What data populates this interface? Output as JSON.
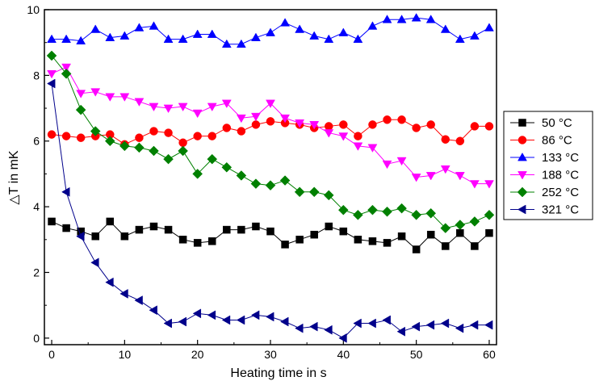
{
  "chart_data": {
    "type": "line",
    "title": "",
    "xlabel": "Heating time in s",
    "ylabel": "△T in mK",
    "xlim": [
      -1,
      61
    ],
    "ylim": [
      -0.2,
      10
    ],
    "x_ticks": [
      "0",
      "10",
      "20",
      "30",
      "40",
      "50",
      "60"
    ],
    "y_ticks": [
      "0",
      "2",
      "4",
      "6",
      "8",
      "10"
    ],
    "grid": false,
    "legend_position": "right",
    "x": [
      0,
      2,
      4,
      6,
      8,
      10,
      12,
      14,
      16,
      18,
      20,
      22,
      24,
      26,
      28,
      30,
      32,
      34,
      36,
      38,
      40,
      42,
      44,
      46,
      48,
      50,
      52,
      54,
      56,
      58,
      60
    ],
    "series": [
      {
        "name": "50 °C",
        "color": "#000000",
        "marker": "square",
        "values": [
          3.55,
          3.35,
          3.25,
          3.1,
          3.55,
          3.1,
          3.3,
          3.4,
          3.3,
          3.0,
          2.9,
          2.95,
          3.3,
          3.3,
          3.4,
          3.25,
          2.85,
          3.0,
          3.15,
          3.4,
          3.25,
          3.0,
          2.95,
          2.9,
          3.1,
          2.7,
          3.15,
          2.8,
          3.2,
          2.8,
          3.2
        ]
      },
      {
        "name": "86 °C",
        "color": "#ff0000",
        "marker": "circle",
        "values": [
          6.2,
          6.15,
          6.1,
          6.15,
          6.2,
          5.9,
          6.1,
          6.3,
          6.25,
          5.95,
          6.15,
          6.15,
          6.4,
          6.3,
          6.5,
          6.6,
          6.55,
          6.5,
          6.4,
          6.45,
          6.5,
          6.15,
          6.5,
          6.65,
          6.65,
          6.4,
          6.5,
          6.05,
          6.0,
          6.45,
          6.45
        ]
      },
      {
        "name": "133 °C",
        "color": "#0000ff",
        "marker": "triangle-up",
        "values": [
          9.1,
          9.1,
          9.05,
          9.4,
          9.15,
          9.2,
          9.45,
          9.5,
          9.1,
          9.1,
          9.25,
          9.25,
          8.95,
          8.95,
          9.15,
          9.3,
          9.6,
          9.4,
          9.2,
          9.1,
          9.3,
          9.1,
          9.5,
          9.7,
          9.7,
          9.75,
          9.7,
          9.4,
          9.1,
          9.2,
          9.45
        ]
      },
      {
        "name": "188 °C",
        "color": "#ff00ff",
        "marker": "triangle-down",
        "values": [
          8.05,
          8.25,
          7.45,
          7.5,
          7.35,
          7.35,
          7.2,
          7.05,
          7.0,
          7.05,
          6.85,
          7.05,
          7.15,
          6.7,
          6.75,
          7.15,
          6.7,
          6.55,
          6.5,
          6.25,
          6.15,
          5.85,
          5.8,
          5.3,
          5.4,
          4.9,
          4.95,
          5.15,
          4.95,
          4.7,
          4.7
        ]
      },
      {
        "name": "252 °C",
        "color": "#008000",
        "marker": "diamond",
        "values": [
          8.6,
          8.05,
          6.95,
          6.3,
          6.0,
          5.85,
          5.8,
          5.7,
          5.45,
          5.7,
          5.0,
          5.45,
          5.2,
          4.95,
          4.7,
          4.65,
          4.8,
          4.45,
          4.45,
          4.35,
          3.9,
          3.75,
          3.9,
          3.85,
          3.95,
          3.75,
          3.8,
          3.35,
          3.45,
          3.55,
          3.75
        ]
      },
      {
        "name": "321 °C",
        "color": "#00008b",
        "marker": "triangle-left",
        "values": [
          7.75,
          4.45,
          3.1,
          2.3,
          1.7,
          1.35,
          1.15,
          0.85,
          0.45,
          0.5,
          0.75,
          0.7,
          0.55,
          0.55,
          0.7,
          0.65,
          0.5,
          0.3,
          0.35,
          0.25,
          0.0,
          0.45,
          0.45,
          0.55,
          0.2,
          0.35,
          0.4,
          0.45,
          0.3,
          0.4,
          0.4
        ]
      }
    ]
  }
}
